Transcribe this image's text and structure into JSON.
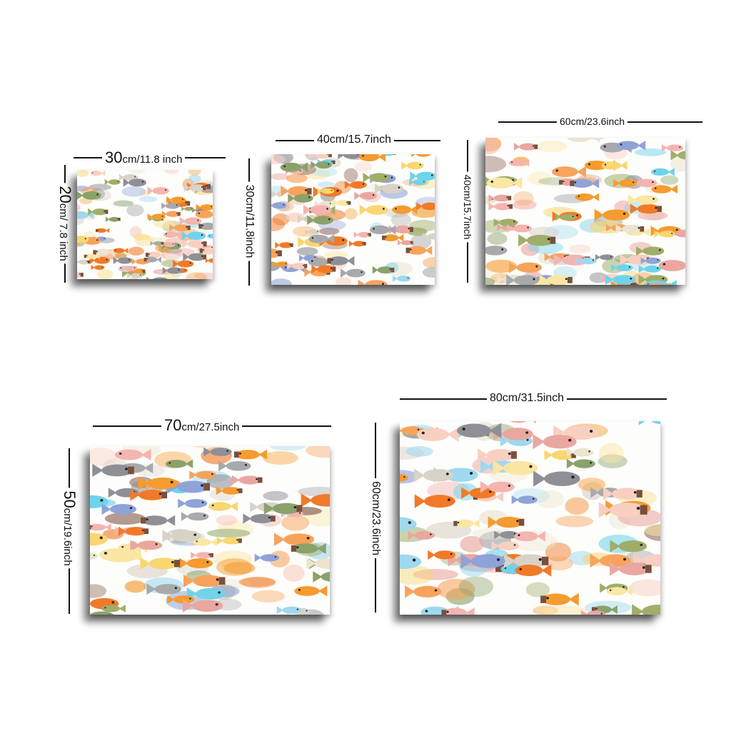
{
  "sizes": [
    {
      "width_label": "30",
      "width_unit": "cm/11.8 inch",
      "height_label": "20",
      "height_unit": "cm/ 7.8 inch"
    },
    {
      "width_label": "40cm/15.7inch",
      "height_label": "30cm/11.8inch"
    },
    {
      "width_label": "60cm/23.6inch",
      "height_label": "40cm/15.7inch"
    },
    {
      "width_label": "70",
      "width_unit": "cm/27.5inch",
      "height_label": "50",
      "height_unit": "cm/19.6inch"
    },
    {
      "width_label": "80cm/31.5inch",
      "height_label": "60cm/23.6inch"
    }
  ],
  "palette": [
    "#f7a35c",
    "#f59b2f",
    "#f07a28",
    "#f9d66f",
    "#fbe6a3",
    "#6fd3ec",
    "#9fd8ef",
    "#8fa3d9",
    "#f4b4b0",
    "#f8cfc0",
    "#e9a7a0",
    "#8e9096",
    "#a7a9ab",
    "#8aa26a",
    "#9fae6a",
    "#ece4cf",
    "#d9d2c7",
    "#7a4f3e"
  ],
  "artwork_icon": "fish-school-painting"
}
